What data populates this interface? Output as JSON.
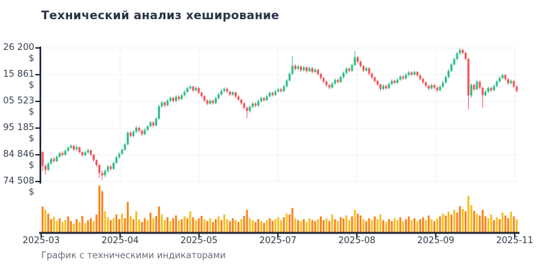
{
  "title": "Технический анализ хеширование",
  "footer": "График с техническими индикаторами",
  "colors": {
    "up_candle": "#2dbe87",
    "down_candle": "#f1575d",
    "volume_orange": "#f8821a",
    "volume_yellow": "#f3c01e",
    "axis": "#1c2536",
    "grid": "#eef0f4",
    "title_text": "#2a3347",
    "tick_text": "#3a4350",
    "footer_text": "#656e7b",
    "background": "#ffffff"
  },
  "chart_data": {
    "type": "candlestick",
    "title": "Технический анализ хеширование",
    "caption": "График с техническими индикаторами",
    "grid": true,
    "currency_suffix": "$",
    "x_tick_labels": [
      "2025-03",
      "2025-04",
      "2025-05",
      "2025-07",
      "2025-08",
      "2025-09",
      "2025-11"
    ],
    "y_tick_labels_visible": [
      "26 200 $",
      "15 861 $",
      "05 523 $",
      "95 185 $",
      "84 846 $",
      "74 508 $"
    ],
    "y_tick_values": [
      126200,
      115861,
      105523,
      95185,
      84846,
      74508
    ],
    "ylim": [
      74508,
      126200
    ],
    "volume_pane": {
      "position": "bottom",
      "unit": "relative",
      "max": 100
    },
    "candles_ohlc": [
      [
        85900,
        86300,
        78500,
        80600
      ],
      [
        80600,
        81200,
        77200,
        79000
      ],
      [
        79000,
        82000,
        78600,
        81500
      ],
      [
        81500,
        83800,
        81000,
        83200
      ],
      [
        83200,
        84000,
        81800,
        82400
      ],
      [
        82400,
        84600,
        82000,
        84100
      ],
      [
        84100,
        86000,
        83700,
        85500
      ],
      [
        85500,
        86200,
        84200,
        84800
      ],
      [
        84800,
        86900,
        84500,
        86400
      ],
      [
        86400,
        88200,
        86000,
        87600
      ],
      [
        87600,
        88900,
        87100,
        88300
      ],
      [
        88300,
        88600,
        86300,
        86900
      ],
      [
        86900,
        88500,
        86500,
        87800
      ],
      [
        87800,
        88000,
        85400,
        85900
      ],
      [
        85900,
        86300,
        84100,
        84700
      ],
      [
        84700,
        86400,
        84300,
        85800
      ],
      [
        85800,
        87200,
        85200,
        86600
      ],
      [
        86600,
        86900,
        84400,
        84900
      ],
      [
        84900,
        85200,
        82200,
        82800
      ],
      [
        82800,
        83100,
        80200,
        80900
      ],
      [
        80900,
        81200,
        75900,
        77800
      ],
      [
        77800,
        78800,
        75000,
        76900
      ],
      [
        76900,
        79200,
        76200,
        78600
      ],
      [
        78600,
        80900,
        78000,
        80300
      ],
      [
        80300,
        81000,
        78800,
        79400
      ],
      [
        79400,
        82200,
        79000,
        81700
      ],
      [
        81700,
        84400,
        81300,
        83900
      ],
      [
        83900,
        85800,
        83400,
        85200
      ],
      [
        85200,
        87300,
        84800,
        86800
      ],
      [
        86800,
        89400,
        86400,
        88900
      ],
      [
        88900,
        93900,
        88600,
        93400
      ],
      [
        93400,
        94000,
        91500,
        92100
      ],
      [
        92100,
        94300,
        91700,
        93800
      ],
      [
        93800,
        95900,
        93300,
        95300
      ],
      [
        95300,
        95800,
        93600,
        94200
      ],
      [
        94200,
        94600,
        92200,
        92800
      ],
      [
        92800,
        95100,
        92400,
        94500
      ],
      [
        94500,
        96400,
        94000,
        95900
      ],
      [
        95900,
        97900,
        95500,
        97400
      ],
      [
        97400,
        97900,
        95600,
        96200
      ],
      [
        96200,
        99400,
        95900,
        98800
      ],
      [
        98800,
        104200,
        98400,
        103600
      ],
      [
        103600,
        105700,
        103000,
        105100
      ],
      [
        105100,
        105600,
        103300,
        104000
      ],
      [
        104000,
        106400,
        103600,
        105800
      ],
      [
        105800,
        107500,
        105300,
        106900
      ],
      [
        106900,
        107300,
        105100,
        105700
      ],
      [
        105700,
        107900,
        105200,
        107300
      ],
      [
        107300,
        107800,
        105800,
        106400
      ],
      [
        106400,
        108500,
        106000,
        107900
      ],
      [
        107900,
        109800,
        107400,
        109200
      ],
      [
        109200,
        111300,
        108800,
        110600
      ],
      [
        110600,
        111900,
        110100,
        111200
      ],
      [
        111200,
        111600,
        109200,
        109800
      ],
      [
        109800,
        111400,
        109300,
        110700
      ],
      [
        110700,
        111000,
        108300,
        108900
      ],
      [
        108900,
        109300,
        107000,
        107600
      ],
      [
        107600,
        107900,
        105300,
        105900
      ],
      [
        105900,
        106300,
        104000,
        104600
      ],
      [
        104600,
        106400,
        104200,
        105800
      ],
      [
        105800,
        106300,
        104300,
        104900
      ],
      [
        104900,
        107300,
        104500,
        106700
      ],
      [
        106700,
        108800,
        106200,
        108200
      ],
      [
        108200,
        110200,
        107800,
        109600
      ],
      [
        109600,
        111000,
        109000,
        110400
      ],
      [
        110400,
        110900,
        108700,
        109300
      ],
      [
        109300,
        109700,
        107500,
        108100
      ],
      [
        108100,
        109600,
        107700,
        109000
      ],
      [
        109000,
        109300,
        106800,
        107400
      ],
      [
        107400,
        107800,
        105600,
        106200
      ],
      [
        106200,
        106600,
        104200,
        104800
      ],
      [
        104800,
        105100,
        102400,
        103100
      ],
      [
        103100,
        103500,
        99000,
        101800
      ],
      [
        101800,
        104000,
        101200,
        103400
      ],
      [
        103400,
        105300,
        102900,
        104700
      ],
      [
        104700,
        105200,
        103200,
        103900
      ],
      [
        103900,
        106200,
        103500,
        105600
      ],
      [
        105600,
        107400,
        105100,
        106800
      ],
      [
        106800,
        107300,
        105400,
        106000
      ],
      [
        106000,
        108100,
        105600,
        107500
      ],
      [
        107500,
        109400,
        107100,
        108800
      ],
      [
        108800,
        109300,
        107400,
        108000
      ],
      [
        108000,
        110000,
        107600,
        109400
      ],
      [
        109400,
        110800,
        108900,
        110200
      ],
      [
        110200,
        110700,
        108900,
        109500
      ],
      [
        109500,
        111900,
        109100,
        111300
      ],
      [
        111300,
        114200,
        110900,
        113600
      ],
      [
        113600,
        116800,
        113200,
        116200
      ],
      [
        116200,
        123000,
        115800,
        119300
      ],
      [
        119300,
        119900,
        117400,
        118100
      ],
      [
        118100,
        119700,
        117600,
        119000
      ],
      [
        119000,
        119400,
        117000,
        117600
      ],
      [
        117600,
        119300,
        117100,
        118700
      ],
      [
        118700,
        119100,
        116600,
        117200
      ],
      [
        117200,
        119000,
        116800,
        118400
      ],
      [
        118400,
        118800,
        116300,
        116900
      ],
      [
        116900,
        118400,
        116400,
        117800
      ],
      [
        117800,
        118100,
        115500,
        116100
      ],
      [
        116100,
        116500,
        114000,
        114600
      ],
      [
        114600,
        115000,
        112500,
        113200
      ],
      [
        113200,
        113600,
        111100,
        111800
      ],
      [
        111800,
        112300,
        110200,
        110900
      ],
      [
        110900,
        113000,
        110500,
        112400
      ],
      [
        112400,
        114400,
        112000,
        113800
      ],
      [
        113800,
        114300,
        112400,
        113000
      ],
      [
        113000,
        115500,
        112600,
        114900
      ],
      [
        114900,
        117100,
        114400,
        116500
      ],
      [
        116500,
        118800,
        116000,
        118200
      ],
      [
        118200,
        118700,
        116800,
        117400
      ],
      [
        117400,
        120200,
        117000,
        119600
      ],
      [
        119600,
        124900,
        119200,
        122600
      ],
      [
        122600,
        123100,
        120200,
        120900
      ],
      [
        120900,
        121400,
        118600,
        119200
      ],
      [
        119200,
        119600,
        116900,
        117500
      ],
      [
        117500,
        119000,
        117000,
        118400
      ],
      [
        118400,
        118700,
        115700,
        116300
      ],
      [
        116300,
        116700,
        114200,
        114800
      ],
      [
        114800,
        115200,
        112800,
        113400
      ],
      [
        113400,
        113900,
        111400,
        112100
      ],
      [
        112100,
        112500,
        109400,
        110300
      ],
      [
        110300,
        112100,
        109900,
        111500
      ],
      [
        111500,
        112000,
        110000,
        110600
      ],
      [
        110600,
        112800,
        110200,
        112200
      ],
      [
        112200,
        114100,
        111800,
        113500
      ],
      [
        113500,
        114000,
        112100,
        112700
      ],
      [
        112700,
        114500,
        112300,
        113900
      ],
      [
        113900,
        115700,
        113500,
        115100
      ],
      [
        115100,
        115600,
        113800,
        114400
      ],
      [
        114400,
        116400,
        114000,
        115800
      ],
      [
        115800,
        117300,
        115300,
        116700
      ],
      [
        116700,
        117200,
        115300,
        115900
      ],
      [
        115900,
        117500,
        115500,
        116900
      ],
      [
        116900,
        117300,
        115000,
        115600
      ],
      [
        115600,
        116000,
        113600,
        114200
      ],
      [
        114200,
        114600,
        112200,
        112900
      ],
      [
        112900,
        113300,
        110900,
        111600
      ],
      [
        111600,
        112000,
        109800,
        110500
      ],
      [
        110500,
        112400,
        110100,
        111800
      ],
      [
        111800,
        112300,
        110300,
        110900
      ],
      [
        110900,
        111300,
        109100,
        109800
      ],
      [
        109800,
        111800,
        109400,
        111200
      ],
      [
        111200,
        113400,
        110800,
        112800
      ],
      [
        112800,
        115500,
        112400,
        114900
      ],
      [
        114900,
        117900,
        114500,
        117300
      ],
      [
        117300,
        120400,
        116900,
        119800
      ],
      [
        119800,
        122500,
        119400,
        121900
      ],
      [
        121900,
        124700,
        121400,
        124100
      ],
      [
        124100,
        126200,
        123600,
        125400
      ],
      [
        125400,
        125900,
        123700,
        124300
      ],
      [
        124300,
        124700,
        121400,
        122000
      ],
      [
        122000,
        122400,
        102300,
        107800
      ],
      [
        107800,
        112600,
        106900,
        111900
      ],
      [
        111900,
        112400,
        109500,
        110200
      ],
      [
        110200,
        113800,
        109800,
        113100
      ],
      [
        113100,
        113500,
        110100,
        110800
      ],
      [
        110800,
        111200,
        103100,
        107900
      ],
      [
        107900,
        109900,
        107400,
        109300
      ],
      [
        109300,
        111300,
        108800,
        110700
      ],
      [
        110700,
        111200,
        109200,
        109800
      ],
      [
        109800,
        112100,
        109400,
        111500
      ],
      [
        111500,
        113800,
        111000,
        113200
      ],
      [
        113200,
        115200,
        112800,
        114600
      ],
      [
        114600,
        116300,
        114100,
        115700
      ],
      [
        115700,
        116100,
        113500,
        114100
      ],
      [
        114100,
        114500,
        111900,
        112600
      ],
      [
        112600,
        114000,
        112100,
        113400
      ],
      [
        113400,
        113800,
        110700,
        111300
      ],
      [
        111300,
        111700,
        108900,
        109600
      ]
    ],
    "volume": [
      55,
      48,
      40,
      28,
      33,
      25,
      30,
      22,
      26,
      34,
      24,
      18,
      28,
      22,
      35,
      20,
      26,
      30,
      24,
      38,
      100,
      88,
      45,
      32,
      26,
      30,
      38,
      28,
      40,
      30,
      65,
      35,
      28,
      45,
      28,
      22,
      30,
      26,
      42,
      30,
      35,
      55,
      38,
      26,
      32,
      24,
      30,
      36,
      25,
      28,
      34,
      30,
      45,
      32,
      26,
      30,
      35,
      28,
      24,
      30,
      22,
      28,
      34,
      26,
      38,
      28,
      24,
      30,
      26,
      22,
      28,
      35,
      48,
      30,
      26,
      22,
      28,
      24,
      20,
      26,
      30,
      24,
      28,
      32,
      26,
      32,
      40,
      38,
      52,
      30,
      26,
      24,
      28,
      22,
      30,
      26,
      24,
      28,
      34,
      26,
      30,
      24,
      38,
      28,
      24,
      32,
      30,
      36,
      26,
      34,
      48,
      40,
      36,
      28,
      24,
      30,
      26,
      34,
      28,
      38,
      26,
      22,
      28,
      24,
      30,
      26,
      32,
      24,
      28,
      34,
      26,
      30,
      24,
      28,
      32,
      26,
      36,
      28,
      24,
      30,
      34,
      40,
      36,
      44,
      38,
      48,
      42,
      56,
      50,
      45,
      78,
      58,
      46,
      40,
      36,
      48,
      34,
      30,
      38,
      26,
      32,
      28,
      42,
      36,
      30,
      44,
      34,
      28
    ],
    "volume_color_pattern": "oyooyyoyyooyoyoyooyoooyyoyooyooyoyyooyoyooyyoyooyoyoyoyooyoyooyoyyooyoyooyyooyoyooyyyoyooyoyoyyooyooyoyoyooyyoyooyooyoyyoyooyyoyooyoyooyoyoyoyoyoyooyoyyoyoooyyoyoyooyoy"
  }
}
